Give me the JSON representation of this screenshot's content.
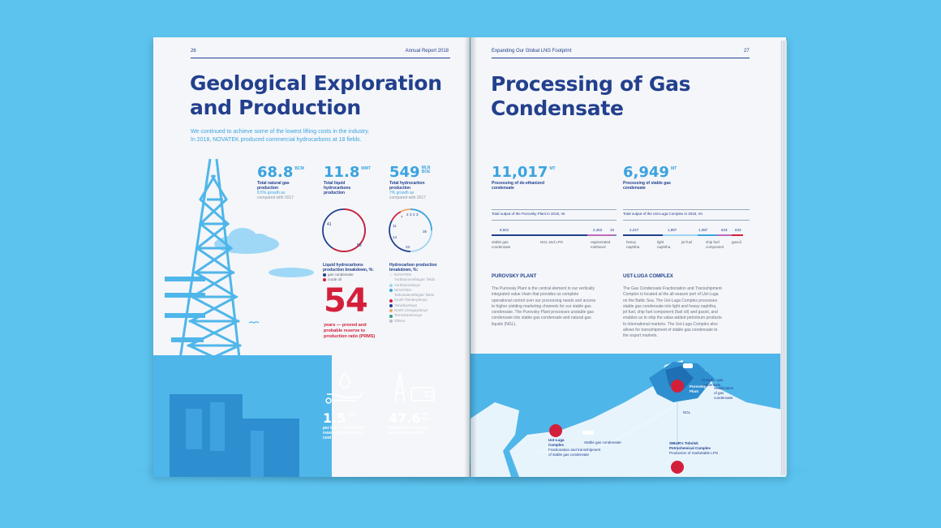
{
  "left_page": {
    "page_number": "26",
    "running_header": "Annual Report 2018",
    "title_line1": "Geological Exploration",
    "title_line2": "and Production",
    "lead_line1": "We continued to achieve some of the lowest lifting costs in the industry.",
    "lead_line2": "In 2018, NOVATEK produced commercial hydrocarbons at 18 fields.",
    "stats": [
      {
        "value": "68.8",
        "unit": "BCM",
        "label_line1": "Total natural gas",
        "label_line2": "production",
        "note_line1": "8.5% growth as",
        "note_line2": "compared with 2017"
      },
      {
        "value": "11.8",
        "unit": "MMT",
        "label_line1": "Total liquid",
        "label_line2": "hydrocarbons",
        "label_line3": "production"
      },
      {
        "value": "549",
        "unit_line1": "MLN",
        "unit_line2": "BOE",
        "label_line1": "Total hydrocarbon",
        "label_line2": "production",
        "note_line1": "7% growth as",
        "note_line2": "compared with 2017"
      }
    ],
    "donut_liquids": {
      "label_a": "41",
      "label_b": "59",
      "values": [
        41,
        59
      ],
      "colors": [
        "#23408e",
        "#d41f3b"
      ]
    },
    "donut_hydrocarbons": {
      "labels": [
        "2",
        "7",
        "3",
        "2",
        "3",
        "11",
        "35",
        "14",
        "23"
      ]
    },
    "liquids_legend": {
      "title_line1": "Liquid hydrocarbons",
      "title_line2": "production breakdown, %:",
      "items": [
        {
          "label": "gas condensate",
          "color": "#23408e"
        },
        {
          "label": "crude oil",
          "color": "#d41f3b"
        }
      ]
    },
    "hc_legend": {
      "title_line1": "Hydrocarbon production",
      "title_line2": "breakdown, %:",
      "items": [
        {
          "label": "NOVATEK-",
          "color": "#e8ecf2"
        },
        {
          "label": "Yurkharovneftegas’ fields",
          "color": null
        },
        {
          "label": "Yurkharovskoye",
          "color": "#9dd5f3"
        },
        {
          "label": "NOVATEK-",
          "color": "#3ba3df"
        },
        {
          "label": "Tarkosaleneftegas’ fields",
          "color": null
        },
        {
          "label": "South-Tambeyskoye",
          "color": "#d41f3b"
        },
        {
          "label": "Yarudeyskoye",
          "color": "#23408e"
        },
        {
          "label": "North-Urengoyskoye",
          "color": "#f0a868"
        },
        {
          "label": "Termokarstovoye",
          "color": "#2a9d8f"
        },
        {
          "label": "Others",
          "color": "#b9c1cc"
        }
      ]
    },
    "reserve_ratio": {
      "value": "54",
      "line1": "years — proved and",
      "line2": "probable reserve to",
      "line3": "production ratio (PRMS)"
    },
    "cost": {
      "value": "1.5",
      "unit": "USD",
      "line1": "per boe — 2014–2018",
      "line2": "reserve replacement",
      "line3": "cost"
    },
    "investment": {
      "value": "47.6",
      "unit_line1": "RR",
      "unit_line2": "BLN",
      "line1": "Invested in resource",
      "line2": "base development"
    }
  },
  "right_page": {
    "page_number": "27",
    "running_header": "Expanding Our Global LNG Footprint",
    "title_line1": "Processing of Gas",
    "title_line2": "Condensate",
    "stats": [
      {
        "value": "11,017",
        "unit": "MT",
        "label_line1": "Processing of de-ethanized",
        "label_line2": "condensate"
      },
      {
        "value": "6,949",
        "unit": "MT",
        "label_line1": "Processing of stable gas",
        "label_line2": "condensate"
      }
    ],
    "purovsky_output": {
      "title": "Total output of the Purovsky Plant in 2018, mt",
      "values": [
        "8,501",
        "2,452",
        "15"
      ],
      "seg_values": [
        8501,
        2452,
        15
      ],
      "colors": [
        "#23408e",
        "#c06ab8",
        "#3ba3df"
      ],
      "labels": [
        "stable gas",
        "condensate",
        "NGL and LPG",
        "regenerated",
        "methanol"
      ]
    },
    "ustluga_output": {
      "title": "Total output of the Ust-Luga Complex in 2018, mt",
      "values": [
        "2,247",
        "1,997",
        "1,087",
        "843",
        "633"
      ],
      "seg_values": [
        2247,
        1997,
        1087,
        843,
        633
      ],
      "colors": [
        "#23408e",
        "#9dd5f3",
        "#3ba3df",
        "#c06ab8",
        "#d41f3b"
      ],
      "labels": [
        "heavy",
        "naphtha",
        "light",
        "naphtha",
        "jet fuel",
        "ship fuel",
        "component",
        "gasoil"
      ]
    },
    "purovsky_section": {
      "heading": "PUROVSKY PLANT",
      "lines": [
        "The Purovsky Plant is the central element in our vertically",
        "integrated value chain that provides us complete",
        "operational control over our processing needs and access",
        "to higher yielding marketing channels for our stable gas",
        "condensate. The Purovsky Plant processes unstable gas",
        "condensate into stable gas condensate and natural gas",
        "liquids (NGL)."
      ]
    },
    "ustluga_section": {
      "heading": "UST-LUGA COMPLEX",
      "lines": [
        "The Gas Condensate Fractionation and Transshipment",
        "Complex is located at the all-season port of Ust-Luga",
        "on the Baltic Sea. The Ust-Luga Complex processes",
        "stable gas condensate into light and heavy naphtha,",
        "jet fuel, ship fuel component (fuel oil) and gasoil, and",
        "enables us to ship the value-added petroleum products",
        "to international markets. The Ust-Luga Complex also",
        "allows for transshipment of stable gas condensate to",
        "the export markets."
      ]
    },
    "map": {
      "unstable_line1": "Unstable gas",
      "unstable_line2": "condensate",
      "purovsky_line1": "Purovsky",
      "purovsky_line2": "Plant",
      "stab_line1": "Stabilization",
      "stab_line2": "of gas",
      "stab_line3": "condensate",
      "ngl": "NGL",
      "sibur_line1": "SIBUR’s Tobolsk",
      "sibur_line2": "Petrochemical Complex",
      "sibur_line3": "Production of marketable LPG",
      "stable_gas": "Stable gas condensate",
      "ustluga_line1": "Ust-Luga",
      "ustluga_line2": "Complex",
      "frac_line1": "Fractionation and transshipment",
      "frac_line2": "of stable gas condensate"
    }
  }
}
